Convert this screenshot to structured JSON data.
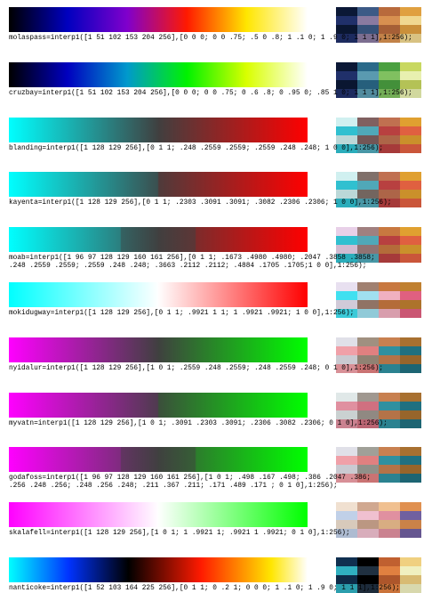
{
  "colormaps": [
    {
      "code": [
        "molaspass=interp1([1 51 102 153 204 256],[0 0 0; 0 0 .75; .5 0 .8; 1 .1 0; 1 .9 0; 1 1 1],1:256);"
      ]
    },
    {
      "code": [
        "cruzbay=interp1([1 51 102 153 204 256],[0 0 0; 0 0 .75; 0 .6 .8; 0 .95 0; .85 1 0; 1 1 1],1:256);"
      ]
    },
    {
      "code": [
        "blanding=interp1([1 128 129 256],[0 1 1; .248 .2559 .2559; .2559 .248 .248; 1 0 0],1:256);"
      ]
    },
    {
      "code": [
        "kayenta=interp1([1 128 129 256],[0 1 1; .2303 .3091 .3091; .3082 .2306 .2306; 1 0 0],1:256);"
      ]
    },
    {
      "code": [
        "moab=interp1([1 96 97 128 129 160 161 256],[0 1 1; .1673 .4980 .4980; .2047 .3858 .3858;",
        ".248 .2559 .2559; .2559 .248 .248; .3663 .2112 .2112; .4884 .1705 .1705;1 0 0],1:256);"
      ]
    },
    {
      "code": [
        "mokidugway=interp1([1 128 129 256],[0 1 1; .9921 1 1; 1 .9921 .9921; 1 0 0],1:256);"
      ]
    },
    {
      "code": [
        "nyidalur=interp1([1 128 129 256],[1 0 1; .2559 .248 .2559; .248 .2559 .248; 0 1 0],1:256);"
      ]
    },
    {
      "code": [
        "myvatn=interp1([1 128 129 256],[1 0 1; .3091 .2303 .3091; .2306 .3082 .2306; 0 1 0],1:256);"
      ]
    },
    {
      "code": [
        "godafoss=interp1([1 96 97 128 129 160 161 256],[1 0 1; .498 .167 .498; .386 .2047 .386;",
        ".256 .248 .256; .248 .256 .248; .211 .367 .211; .171 .489 .171 ; 0 1 0],1:256);"
      ]
    },
    {
      "code": [
        "skalafell=interp1([1 128 129 256],[1 0 1; 1 .9921 1; .9921 1 .9921; 0 1 0],1:256);"
      ]
    },
    {
      "code": [
        "nanticoke=interp1([1 52 103 164 225 256],[0 1 1; 0 .2 1; 0 0 0; 1 .1 0; 1 .9 0; 1 1 1],1:256);"
      ]
    }
  ]
}
